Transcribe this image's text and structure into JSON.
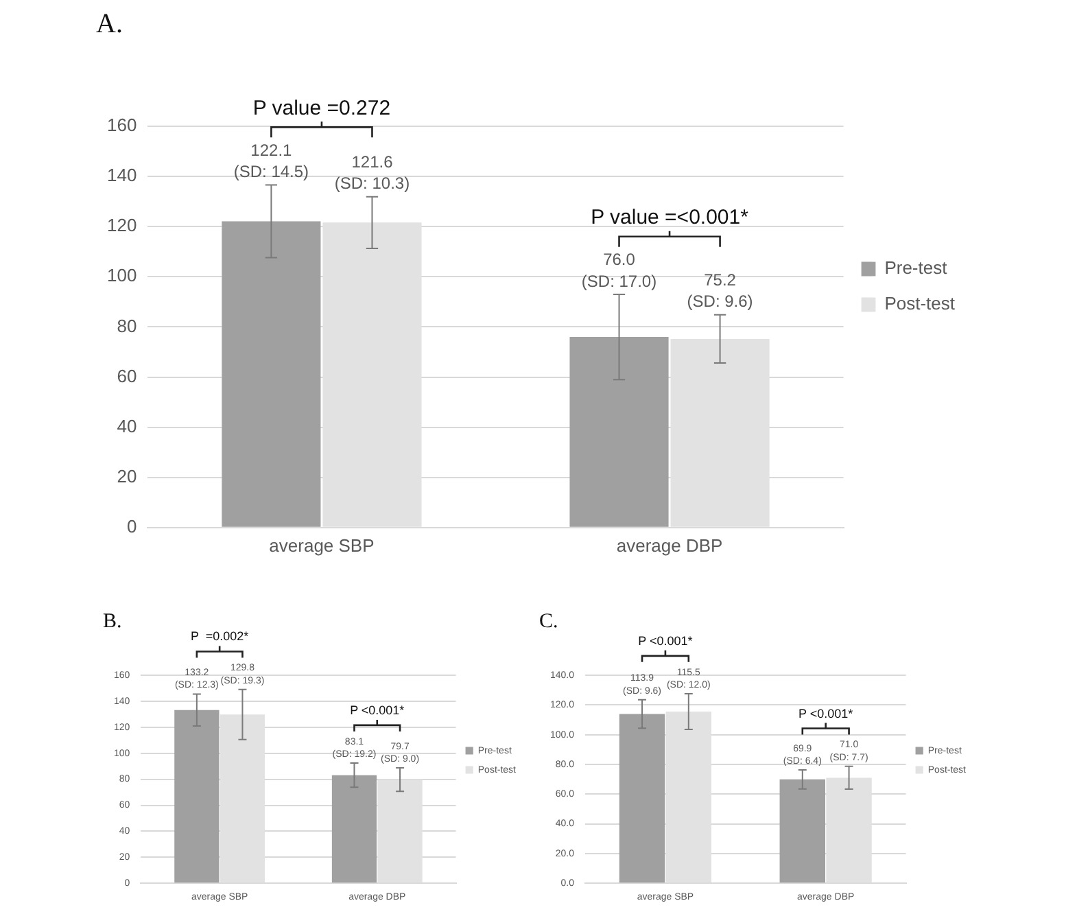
{
  "chart_data": [
    {
      "type": "bar",
      "title": "A.",
      "categories": [
        "average SBP",
        "average DBP"
      ],
      "series": [
        {
          "name": "Pre-test",
          "color": "#a0a0a0",
          "values": [
            122.1,
            76.0
          ],
          "errors": [
            14.5,
            17.0
          ],
          "value_labels": [
            "122.1\n(SD: 14.5)",
            "76.0\n(SD: 17.0)"
          ]
        },
        {
          "name": "Post-test",
          "color": "#e3e2e3",
          "values": [
            121.6,
            75.2
          ],
          "errors": [
            10.3,
            9.6
          ],
          "value_labels": [
            "121.6\n(SD: 10.3)",
            "75.2\n(SD: 9.6)"
          ]
        }
      ],
      "ylim": [
        0,
        160
      ],
      "yticks": [
        0,
        20,
        40,
        60,
        80,
        100,
        120,
        140,
        160
      ],
      "grid": "y",
      "legend": "right",
      "annotations": [
        "P value =0.272",
        "P value =<0.001*"
      ]
    },
    {
      "type": "bar",
      "title": "B.",
      "categories": [
        "average SBP",
        "average DBP"
      ],
      "series": [
        {
          "name": "Pre-test",
          "color": "#a0a0a0",
          "values": [
            133.2,
            83.1
          ],
          "errors": [
            12.3,
            9.3
          ],
          "value_labels": [
            "133.2\n(SD: 12.3)",
            "83.1\n(SD: 19.2)"
          ]
        },
        {
          "name": "Post-test",
          "color": "#e3e2e3",
          "values": [
            129.8,
            79.7
          ],
          "errors": [
            19.3,
            9.0
          ],
          "value_labels": [
            "129.8\n(SD: 19.3)",
            "79.7\n(SD: 9.0)"
          ]
        }
      ],
      "ylim": [
        0,
        160
      ],
      "yticks": [
        0,
        20,
        40,
        60,
        80,
        100,
        120,
        140,
        160
      ],
      "grid": "y",
      "legend": "right",
      "annotations": [
        "P  =0.002*",
        "P <0.001*"
      ]
    },
    {
      "type": "bar",
      "title": "C.",
      "categories": [
        "average SBP",
        "average DBP"
      ],
      "series": [
        {
          "name": "Pre-test",
          "color": "#a0a0a0",
          "values": [
            113.9,
            69.9
          ],
          "errors": [
            9.6,
            6.4
          ],
          "value_labels": [
            "113.9\n(SD: 9.6)",
            "69.9\n(SD: 6.4)"
          ]
        },
        {
          "name": "Post-test",
          "color": "#e3e2e3",
          "values": [
            115.5,
            71.0
          ],
          "errors": [
            12.0,
            7.7
          ],
          "value_labels": [
            "115.5\n(SD: 12.0)",
            "71.0\n(SD: 7.7)"
          ]
        }
      ],
      "ylim": [
        0,
        140
      ],
      "yticks": [
        {
          "value": 0,
          "label": "0.0"
        },
        {
          "value": 20,
          "label": "20.0"
        },
        {
          "value": 40,
          "label": "40.0"
        },
        {
          "value": 60,
          "label": "60.0"
        },
        {
          "value": 80,
          "label": "80.0"
        },
        {
          "value": 100,
          "label": "100.0"
        },
        {
          "value": 120,
          "label": "120.0"
        },
        {
          "value": 140,
          "label": "140.0"
        }
      ],
      "grid": "y",
      "legend": "right",
      "annotations": [
        "P <0.001*",
        "P <0.001*"
      ]
    }
  ]
}
